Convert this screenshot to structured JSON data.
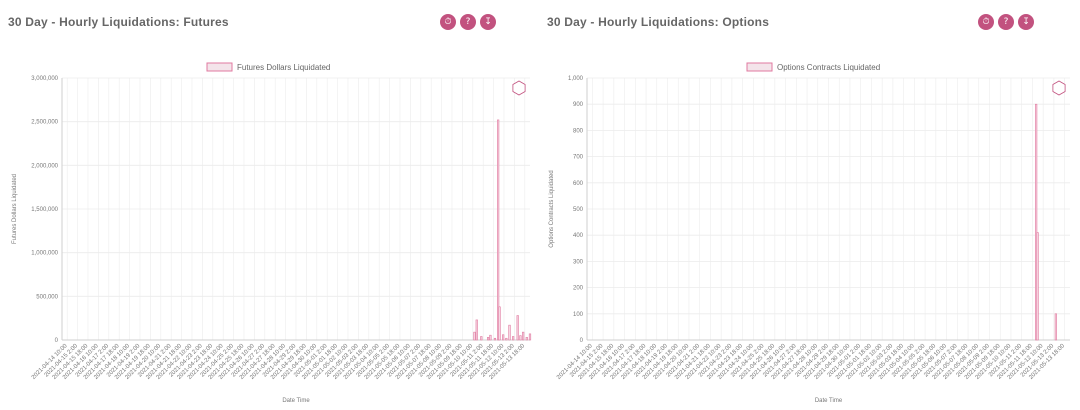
{
  "colors": {
    "accent": "#c2527f",
    "bar_fill": "#f7d6e2",
    "bar_stroke": "#e07aa0",
    "grid": "#ececec"
  },
  "icons": [
    "info-icon",
    "help-icon",
    "download-icon",
    "hex-logo-icon"
  ],
  "panels": [
    {
      "title": "30 Day - Hourly Liquidations: Futures",
      "legend": "Futures Dollars Liquidated",
      "icons": [
        "info-icon",
        "help-icon",
        "download-icon"
      ]
    },
    {
      "title": "30 Day - Hourly Liquidations: Options",
      "legend": "Options Contracts Liquidated",
      "icons": [
        "info-icon",
        "help-icon",
        "download-icon"
      ]
    }
  ],
  "chart_data": [
    {
      "type": "bar",
      "xlabel": "Date Time",
      "ylabel": "Futures Dollars Liquidated",
      "ylim": [
        0,
        3000000
      ],
      "yticks": [
        0,
        500000,
        1000000,
        1500000,
        2000000,
        2500000,
        3000000
      ],
      "ytick_labels": [
        "0",
        "500,000",
        "1,000,000",
        "1,500,000",
        "2,000,000",
        "2,500,000",
        "3,000,000"
      ],
      "grid": true,
      "legend_position": "top-center",
      "series": [
        {
          "name": "Futures Dollars Liquidated",
          "values": [
            {
              "x": 0.905,
              "y": 90000
            },
            {
              "x": 0.91,
              "y": 230000
            },
            {
              "x": 0.92,
              "y": 40000
            },
            {
              "x": 0.935,
              "y": 30000
            },
            {
              "x": 0.94,
              "y": 55000
            },
            {
              "x": 0.95,
              "y": 20000
            },
            {
              "x": 0.957,
              "y": 2520000
            },
            {
              "x": 0.96,
              "y": 380000
            },
            {
              "x": 0.968,
              "y": 60000
            },
            {
              "x": 0.975,
              "y": 20000
            },
            {
              "x": 0.982,
              "y": 170000
            },
            {
              "x": 0.99,
              "y": 40000
            },
            {
              "x": 1.0,
              "y": 280000
            },
            {
              "x": 1.006,
              "y": 50000
            },
            {
              "x": 1.012,
              "y": 90000
            },
            {
              "x": 1.02,
              "y": 30000
            },
            {
              "x": 1.027,
              "y": 70000
            }
          ]
        }
      ],
      "xticks": [
        "2021-04-14 10:00",
        "2021-04-15 2:00",
        "2021-04-15 18:00",
        "2021-04-16 10:00",
        "2021-04-17 2:00",
        "2021-04-17 18:00",
        "2021-04-18 10:00",
        "2021-04-19 2:00",
        "2021-04-19 18:00",
        "2021-04-20 10:00",
        "2021-04-21 2:00",
        "2021-04-21 18:00",
        "2021-04-22 10:00",
        "2021-04-23 2:00",
        "2021-04-23 18:00",
        "2021-04-24 10:00",
        "2021-04-25 2:00",
        "2021-04-25 18:00",
        "2021-04-26 10:00",
        "2021-04-27 2:00",
        "2021-04-27 18:00",
        "2021-04-28 10:00",
        "2021-04-29 2:00",
        "2021-04-29 18:00",
        "2021-04-30 10:00",
        "2021-05-01 2:00",
        "2021-05-01 18:00",
        "2021-05-02 10:00",
        "2021-05-03 2:00",
        "2021-05-03 18:00",
        "2021-05-04 10:00",
        "2021-05-05 2:00",
        "2021-05-05 18:00",
        "2021-05-06 10:00",
        "2021-05-07 2:00",
        "2021-05-07 18:00",
        "2021-05-08 10:00",
        "2021-05-09 2:00",
        "2021-05-09 18:00",
        "2021-05-10 10:00",
        "2021-05-11 2:00",
        "2021-05-11 18:00",
        "2021-05-12 10:00",
        "2021-05-13 2:00",
        "2021-05-13 18:00"
      ]
    },
    {
      "type": "bar",
      "xlabel": "Date Time",
      "ylabel": "Options Contracts Liquidated",
      "ylim": [
        0,
        1000
      ],
      "yticks": [
        0,
        100,
        200,
        300,
        400,
        500,
        600,
        700,
        800,
        900,
        1000
      ],
      "ytick_labels": [
        "0",
        "100",
        "200",
        "300",
        "400",
        "500",
        "600",
        "700",
        "800",
        "900",
        "1,000"
      ],
      "grid": true,
      "legend_position": "top-center",
      "series": [
        {
          "name": "Options Contracts Liquidated",
          "values": [
            {
              "x": 0.955,
              "y": 900
            },
            {
              "x": 0.958,
              "y": 410
            },
            {
              "x": 0.997,
              "y": 100
            }
          ]
        }
      ],
      "xticks": [
        "2021-04-14 10:00",
        "2021-04-15 2:00",
        "2021-04-15 18:00",
        "2021-04-16 10:00",
        "2021-04-17 2:00",
        "2021-04-17 18:00",
        "2021-04-18 10:00",
        "2021-04-19 2:00",
        "2021-04-19 18:00",
        "2021-04-20 10:00",
        "2021-04-21 2:00",
        "2021-04-21 18:00",
        "2021-04-22 10:00",
        "2021-04-23 2:00",
        "2021-04-23 18:00",
        "2021-04-24 10:00",
        "2021-04-25 2:00",
        "2021-04-25 18:00",
        "2021-04-26 10:00",
        "2021-04-27 2:00",
        "2021-04-27 18:00",
        "2021-04-28 10:00",
        "2021-04-29 2:00",
        "2021-04-29 18:00",
        "2021-04-30 10:00",
        "2021-05-01 2:00",
        "2021-05-01 18:00",
        "2021-05-02 10:00",
        "2021-05-03 2:00",
        "2021-05-03 18:00",
        "2021-05-04 10:00",
        "2021-05-05 2:00",
        "2021-05-05 18:00",
        "2021-05-06 10:00",
        "2021-05-07 2:00",
        "2021-05-07 18:00",
        "2021-05-08 10:00",
        "2021-05-09 2:00",
        "2021-05-09 18:00",
        "2021-05-10 10:00",
        "2021-05-11 2:00",
        "2021-05-11 18:00",
        "2021-05-12 10:00",
        "2021-05-13 2:00",
        "2021-05-13 18:00"
      ]
    }
  ]
}
